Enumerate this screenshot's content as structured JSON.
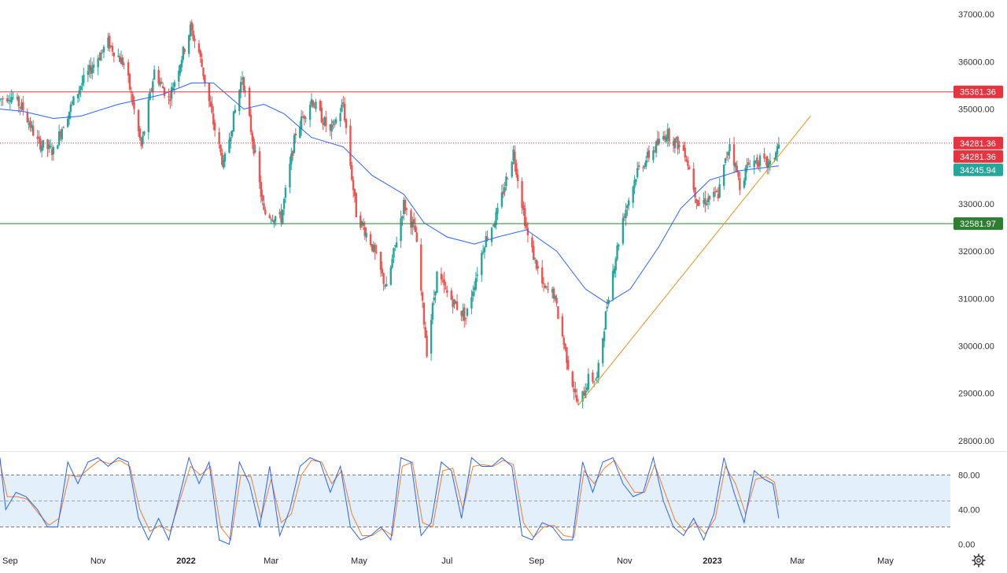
{
  "chart_data": [
    {
      "type": "candlestick",
      "title": "",
      "price_axis": {
        "range": [
          27800,
          37300
        ],
        "ticks": [
          "37000.00",
          "36000.00",
          "35000.00",
          "34000.00",
          "33000.00",
          "32000.00",
          "31000.00",
          "30000.00",
          "29000.00",
          "28000.00"
        ]
      },
      "time_axis": {
        "range": [
          "2021-08-25",
          "2023-06-15"
        ],
        "labels": [
          {
            "date": "2021-09-01",
            "text": "Sep",
            "bold": false
          },
          {
            "date": "2021-11-01",
            "text": "Nov",
            "bold": false
          },
          {
            "date": "2022-01-01",
            "text": "2022",
            "bold": true
          },
          {
            "date": "2022-03-01",
            "text": "Mar",
            "bold": false
          },
          {
            "date": "2022-05-01",
            "text": "May",
            "bold": false
          },
          {
            "date": "2022-07-01",
            "text": "Jul",
            "bold": false
          },
          {
            "date": "2022-09-01",
            "text": "Sep",
            "bold": false
          },
          {
            "date": "2022-11-01",
            "text": "Nov",
            "bold": false
          },
          {
            "date": "2023-01-01",
            "text": "2023",
            "bold": true
          },
          {
            "date": "2023-03-01",
            "text": "Mar",
            "bold": false
          },
          {
            "date": "2023-05-01",
            "text": "May",
            "bold": false
          }
        ]
      },
      "price_path": [
        [
          "2021-08-25",
          35200
        ],
        [
          "2021-09-01",
          35300
        ],
        [
          "2021-09-10",
          35000
        ],
        [
          "2021-09-20",
          34300
        ],
        [
          "2021-10-01",
          34100
        ],
        [
          "2021-10-08",
          34700
        ],
        [
          "2021-10-20",
          35500
        ],
        [
          "2021-11-01",
          36100
        ],
        [
          "2021-11-08",
          36400
        ],
        [
          "2021-11-20",
          35900
        ],
        [
          "2021-12-01",
          34200
        ],
        [
          "2021-12-10",
          35800
        ],
        [
          "2021-12-20",
          35200
        ],
        [
          "2022-01-04",
          36700
        ],
        [
          "2022-01-10",
          36200
        ],
        [
          "2022-01-20",
          34700
        ],
        [
          "2022-01-27",
          33800
        ],
        [
          "2022-02-09",
          35700
        ],
        [
          "2022-02-18",
          34000
        ],
        [
          "2022-02-24",
          32800
        ],
        [
          "2022-03-08",
          32700
        ],
        [
          "2022-03-18",
          34500
        ],
        [
          "2022-03-29",
          35200
        ],
        [
          "2022-04-11",
          34500
        ],
        [
          "2022-04-20",
          35100
        ],
        [
          "2022-04-29",
          32800
        ],
        [
          "2022-05-09",
          32200
        ],
        [
          "2022-05-20",
          31200
        ],
        [
          "2022-06-01",
          33000
        ],
        [
          "2022-06-09",
          32400
        ],
        [
          "2022-06-17",
          29900
        ],
        [
          "2022-06-24",
          31500
        ],
        [
          "2022-07-01",
          31100
        ],
        [
          "2022-07-14",
          30600
        ],
        [
          "2022-07-27",
          32200
        ],
        [
          "2022-08-05",
          32800
        ],
        [
          "2022-08-16",
          34100
        ],
        [
          "2022-08-26",
          32300
        ],
        [
          "2022-09-06",
          31200
        ],
        [
          "2022-09-13",
          31100
        ],
        [
          "2022-09-23",
          29600
        ],
        [
          "2022-09-30",
          28700
        ],
        [
          "2022-10-07",
          29300
        ],
        [
          "2022-10-13",
          29300
        ],
        [
          "2022-10-21",
          31100
        ],
        [
          "2022-10-31",
          32700
        ],
        [
          "2022-11-10",
          33700
        ],
        [
          "2022-11-30",
          34500
        ],
        [
          "2022-12-13",
          34100
        ],
        [
          "2022-12-22",
          33000
        ],
        [
          "2023-01-05",
          33200
        ],
        [
          "2023-01-13",
          34300
        ],
        [
          "2023-01-20",
          33400
        ],
        [
          "2023-01-27",
          33900
        ],
        [
          "2023-02-03",
          33900
        ],
        [
          "2023-02-10",
          33800
        ],
        [
          "2023-02-16",
          34245.94
        ]
      ],
      "moving_average": [
        [
          "2021-08-25",
          35000
        ],
        [
          "2021-09-10",
          34950
        ],
        [
          "2021-10-01",
          34800
        ],
        [
          "2021-10-20",
          34850
        ],
        [
          "2021-11-15",
          35100
        ],
        [
          "2021-12-15",
          35300
        ],
        [
          "2022-01-05",
          35550
        ],
        [
          "2022-01-20",
          35550
        ],
        [
          "2022-02-10",
          35000
        ],
        [
          "2022-02-24",
          35100
        ],
        [
          "2022-03-10",
          34900
        ],
        [
          "2022-03-29",
          34400
        ],
        [
          "2022-04-20",
          34200
        ],
        [
          "2022-05-10",
          33600
        ],
        [
          "2022-06-01",
          33200
        ],
        [
          "2022-06-15",
          32600
        ],
        [
          "2022-07-01",
          32300
        ],
        [
          "2022-07-20",
          32150
        ],
        [
          "2022-08-05",
          32300
        ],
        [
          "2022-08-25",
          32450
        ],
        [
          "2022-09-15",
          32000
        ],
        [
          "2022-10-05",
          31200
        ],
        [
          "2022-10-20",
          30900
        ],
        [
          "2022-11-05",
          31200
        ],
        [
          "2022-11-25",
          32100
        ],
        [
          "2022-12-10",
          32900
        ],
        [
          "2022-12-30",
          33500
        ],
        [
          "2023-01-20",
          33700
        ],
        [
          "2023-02-16",
          33800
        ]
      ],
      "trendline": {
        "start": [
          "2022-09-30",
          28750
        ],
        "end": [
          "2023-03-10",
          34850
        ],
        "color": "#f09020"
      },
      "horizontal_levels": [
        {
          "value": 35361.36,
          "label": "35361.36",
          "color": "#e5333f",
          "style": "solid"
        },
        {
          "value": 34281.36,
          "label": "34281.36",
          "color": "#e5333f",
          "style": "dotted"
        },
        {
          "value": 32581.97,
          "label": "32581.97",
          "color": "#2e7d32",
          "style": "solid"
        }
      ],
      "price_tags": [
        {
          "value": 35361.36,
          "label": "35361.36",
          "color": "#e5333f"
        },
        {
          "value": 34281.36,
          "label": "34281.36",
          "color": "#e5333f"
        },
        {
          "value": 34281.36,
          "label": "34281.36",
          "color": "#e5333f"
        },
        {
          "value": 34245.94,
          "label": "34245.94",
          "color": "#26a69a"
        },
        {
          "value": 32581.97,
          "label": "32581.97",
          "color": "#2e7d32"
        }
      ],
      "colors": {
        "up": "#26a69a",
        "down": "#ef5350",
        "moving_average": "#2962ff"
      }
    },
    {
      "type": "line",
      "title": "",
      "y_range": [
        -5,
        105
      ],
      "ticks": [
        "80.00",
        "40.00",
        "0.00"
      ],
      "band": [
        20,
        80
      ],
      "mid_line": 50,
      "colors": {
        "k": "#2962ff",
        "d": "#ef7d32",
        "band": "#e3f0fc"
      },
      "k_path": [
        [
          "2021-08-25",
          100
        ],
        [
          "2021-08-29",
          40
        ],
        [
          "2021-09-05",
          60
        ],
        [
          "2021-09-12",
          55
        ],
        [
          "2021-09-20",
          40
        ],
        [
          "2021-09-27",
          20
        ],
        [
          "2021-10-04",
          20
        ],
        [
          "2021-10-11",
          95
        ],
        [
          "2021-10-18",
          70
        ],
        [
          "2021-10-25",
          95
        ],
        [
          "2021-11-01",
          100
        ],
        [
          "2021-11-08",
          90
        ],
        [
          "2021-11-15",
          100
        ],
        [
          "2021-11-22",
          95
        ],
        [
          "2021-11-29",
          30
        ],
        [
          "2021-12-06",
          5
        ],
        [
          "2021-12-13",
          30
        ],
        [
          "2021-12-20",
          5
        ],
        [
          "2022-01-03",
          100
        ],
        [
          "2022-01-10",
          70
        ],
        [
          "2022-01-17",
          95
        ],
        [
          "2022-01-24",
          5
        ],
        [
          "2022-01-31",
          0
        ],
        [
          "2022-02-07",
          95
        ],
        [
          "2022-02-14",
          70
        ],
        [
          "2022-02-21",
          20
        ],
        [
          "2022-02-28",
          90
        ],
        [
          "2022-03-07",
          10
        ],
        [
          "2022-03-14",
          40
        ],
        [
          "2022-03-21",
          90
        ],
        [
          "2022-03-28",
          100
        ],
        [
          "2022-04-04",
          95
        ],
        [
          "2022-04-11",
          60
        ],
        [
          "2022-04-18",
          90
        ],
        [
          "2022-04-25",
          20
        ],
        [
          "2022-05-02",
          5
        ],
        [
          "2022-05-09",
          10
        ],
        [
          "2022-05-16",
          20
        ],
        [
          "2022-05-23",
          5
        ],
        [
          "2022-05-30",
          100
        ],
        [
          "2022-06-06",
          95
        ],
        [
          "2022-06-13",
          10
        ],
        [
          "2022-06-20",
          25
        ],
        [
          "2022-06-27",
          95
        ],
        [
          "2022-07-04",
          85
        ],
        [
          "2022-07-11",
          30
        ],
        [
          "2022-07-18",
          100
        ],
        [
          "2022-07-25",
          90
        ],
        [
          "2022-08-01",
          90
        ],
        [
          "2022-08-08",
          100
        ],
        [
          "2022-08-15",
          90
        ],
        [
          "2022-08-22",
          10
        ],
        [
          "2022-08-29",
          5
        ],
        [
          "2022-09-05",
          25
        ],
        [
          "2022-09-12",
          20
        ],
        [
          "2022-09-19",
          5
        ],
        [
          "2022-09-26",
          5
        ],
        [
          "2022-10-03",
          95
        ],
        [
          "2022-10-10",
          60
        ],
        [
          "2022-10-17",
          95
        ],
        [
          "2022-10-24",
          100
        ],
        [
          "2022-10-31",
          70
        ],
        [
          "2022-11-07",
          55
        ],
        [
          "2022-11-14",
          60
        ],
        [
          "2022-11-21",
          100
        ],
        [
          "2022-11-28",
          50
        ],
        [
          "2022-12-05",
          20
        ],
        [
          "2022-12-12",
          10
        ],
        [
          "2022-12-19",
          30
        ],
        [
          "2022-12-26",
          5
        ],
        [
          "2023-01-02",
          35
        ],
        [
          "2023-01-09",
          100
        ],
        [
          "2023-01-16",
          60
        ],
        [
          "2023-01-23",
          25
        ],
        [
          "2023-01-30",
          85
        ],
        [
          "2023-02-06",
          75
        ],
        [
          "2023-02-12",
          70
        ],
        [
          "2023-02-16",
          30
        ]
      ],
      "d_path": [
        [
          "2021-08-25",
          95
        ],
        [
          "2021-08-30",
          55
        ],
        [
          "2021-09-06",
          55
        ],
        [
          "2021-09-13",
          52
        ],
        [
          "2021-09-21",
          35
        ],
        [
          "2021-09-28",
          22
        ],
        [
          "2021-10-05",
          30
        ],
        [
          "2021-10-12",
          80
        ],
        [
          "2021-10-19",
          78
        ],
        [
          "2021-10-26",
          88
        ],
        [
          "2021-11-02",
          97
        ],
        [
          "2021-11-09",
          93
        ],
        [
          "2021-11-16",
          97
        ],
        [
          "2021-11-23",
          90
        ],
        [
          "2021-11-30",
          40
        ],
        [
          "2021-12-07",
          15
        ],
        [
          "2021-12-14",
          22
        ],
        [
          "2021-12-21",
          15
        ],
        [
          "2022-01-04",
          90
        ],
        [
          "2022-01-11",
          80
        ],
        [
          "2022-01-18",
          90
        ],
        [
          "2022-01-25",
          20
        ],
        [
          "2022-02-01",
          5
        ],
        [
          "2022-02-08",
          80
        ],
        [
          "2022-02-15",
          78
        ],
        [
          "2022-02-22",
          30
        ],
        [
          "2022-03-01",
          75
        ],
        [
          "2022-03-08",
          25
        ],
        [
          "2022-03-15",
          35
        ],
        [
          "2022-03-22",
          80
        ],
        [
          "2022-03-29",
          97
        ],
        [
          "2022-04-05",
          95
        ],
        [
          "2022-04-12",
          70
        ],
        [
          "2022-04-19",
          85
        ],
        [
          "2022-04-26",
          35
        ],
        [
          "2022-05-03",
          10
        ],
        [
          "2022-05-10",
          10
        ],
        [
          "2022-05-17",
          18
        ],
        [
          "2022-05-24",
          10
        ],
        [
          "2022-05-31",
          90
        ],
        [
          "2022-06-07",
          95
        ],
        [
          "2022-06-14",
          25
        ],
        [
          "2022-06-21",
          20
        ],
        [
          "2022-06-28",
          85
        ],
        [
          "2022-07-05",
          88
        ],
        [
          "2022-07-12",
          40
        ],
        [
          "2022-07-19",
          90
        ],
        [
          "2022-07-26",
          92
        ],
        [
          "2022-08-02",
          90
        ],
        [
          "2022-08-09",
          97
        ],
        [
          "2022-08-16",
          92
        ],
        [
          "2022-08-23",
          25
        ],
        [
          "2022-08-30",
          8
        ],
        [
          "2022-09-06",
          20
        ],
        [
          "2022-09-13",
          22
        ],
        [
          "2022-09-20",
          10
        ],
        [
          "2022-09-27",
          8
        ],
        [
          "2022-10-04",
          85
        ],
        [
          "2022-10-11",
          70
        ],
        [
          "2022-10-18",
          88
        ],
        [
          "2022-10-25",
          97
        ],
        [
          "2022-11-01",
          78
        ],
        [
          "2022-11-08",
          60
        ],
        [
          "2022-11-15",
          60
        ],
        [
          "2022-11-22",
          92
        ],
        [
          "2022-11-29",
          60
        ],
        [
          "2022-12-06",
          28
        ],
        [
          "2022-12-13",
          15
        ],
        [
          "2022-12-20",
          25
        ],
        [
          "2022-12-27",
          12
        ],
        [
          "2023-01-03",
          30
        ],
        [
          "2023-01-10",
          90
        ],
        [
          "2023-01-17",
          70
        ],
        [
          "2023-01-24",
          35
        ],
        [
          "2023-01-31",
          75
        ],
        [
          "2023-02-07",
          78
        ],
        [
          "2023-02-13",
          72
        ],
        [
          "2023-02-16",
          45
        ]
      ]
    }
  ],
  "icons": {
    "settings": "gear-icon"
  }
}
